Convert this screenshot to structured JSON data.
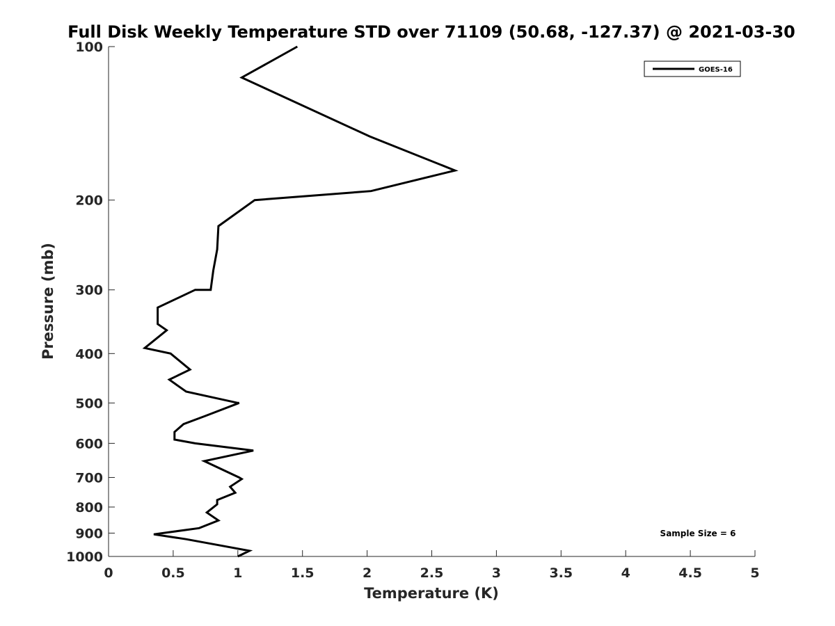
{
  "chart_data": {
    "type": "line",
    "title": "Full Disk Weekly Temperature STD over 71109 (50.68, -127.37) @ 2021-03-30",
    "xlabel": "Temperature (K)",
    "ylabel": "Pressure (mb)",
    "xlim": [
      0,
      5
    ],
    "ylim": [
      100,
      1000
    ],
    "y_scale": "log",
    "y_reversed": true,
    "x_ticks": [
      "0",
      "0.5",
      "1",
      "1.5",
      "2",
      "2.5",
      "3",
      "3.5",
      "4",
      "4.5",
      "5"
    ],
    "y_ticks": [
      "100",
      "200",
      "300",
      "400",
      "500",
      "600",
      "700",
      "800",
      "900",
      "1000"
    ],
    "grid": false,
    "legend_position": "top-right",
    "series": [
      {
        "name": "GOES-16",
        "color": "#000000",
        "points": [
          [
            1.46,
            100
          ],
          [
            1.03,
            115
          ],
          [
            2.02,
            150
          ],
          [
            2.68,
            175
          ],
          [
            2.03,
            192
          ],
          [
            1.13,
            200
          ],
          [
            0.85,
            225
          ],
          [
            0.84,
            250
          ],
          [
            0.81,
            275
          ],
          [
            0.79,
            300
          ],
          [
            0.67,
            300
          ],
          [
            0.38,
            325
          ],
          [
            0.38,
            350
          ],
          [
            0.45,
            360
          ],
          [
            0.28,
            390
          ],
          [
            0.48,
            400
          ],
          [
            0.63,
            430
          ],
          [
            0.47,
            450
          ],
          [
            0.6,
            475
          ],
          [
            1.0,
            500
          ],
          [
            1.01,
            500
          ],
          [
            0.75,
            530
          ],
          [
            0.58,
            550
          ],
          [
            0.51,
            570
          ],
          [
            0.51,
            590
          ],
          [
            0.67,
            600
          ],
          [
            1.12,
            620
          ],
          [
            0.74,
            650
          ],
          [
            1.01,
            700
          ],
          [
            1.03,
            705
          ],
          [
            0.94,
            730
          ],
          [
            0.98,
            750
          ],
          [
            0.84,
            775
          ],
          [
            0.84,
            790
          ],
          [
            0.76,
            820
          ],
          [
            0.85,
            850
          ],
          [
            0.7,
            880
          ],
          [
            0.35,
            905
          ],
          [
            0.6,
            925
          ],
          [
            0.85,
            950
          ],
          [
            1.09,
            975
          ],
          [
            1.0,
            1000
          ]
        ]
      }
    ],
    "annotations": [
      "Sample Size = 6"
    ]
  }
}
